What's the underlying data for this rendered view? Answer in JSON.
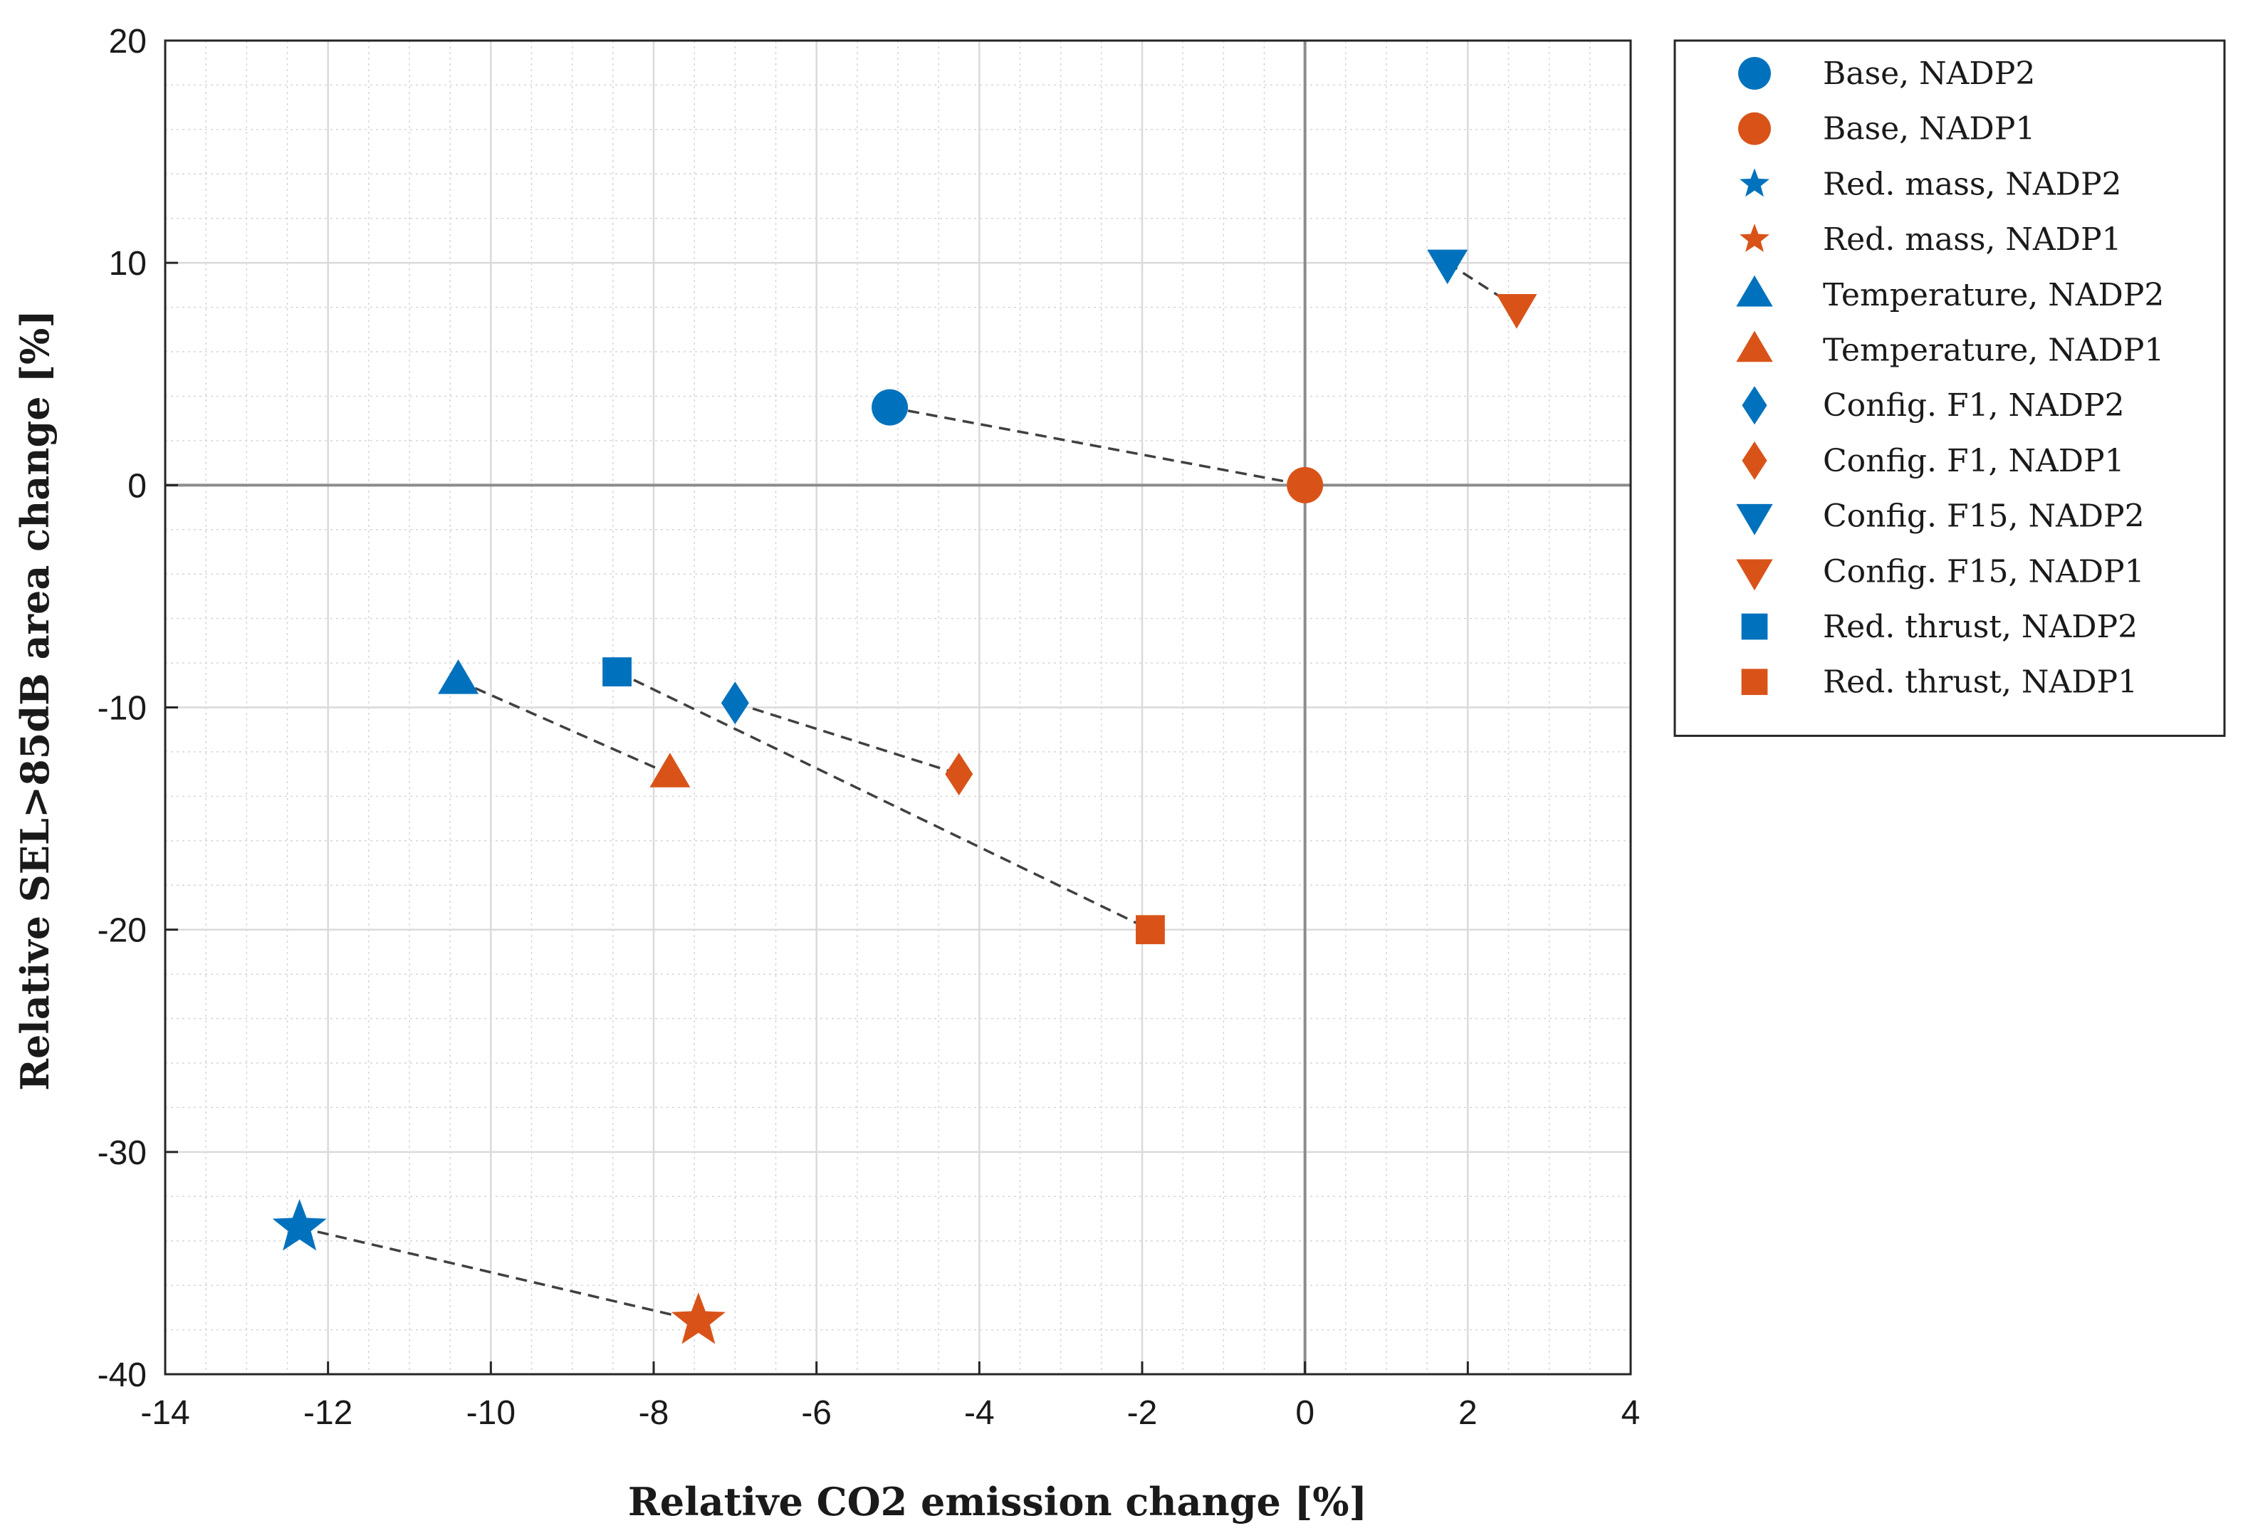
{
  "chart_data": {
    "type": "scatter",
    "title": "",
    "xlabel": "Relative CO2 emission change [%]",
    "ylabel": "Relative SEL>85dB area change [%]",
    "xlim": [
      -14,
      4
    ],
    "ylim": [
      -40,
      20
    ],
    "xticks": [
      -14,
      -12,
      -10,
      -8,
      -6,
      -4,
      -2,
      0,
      2,
      4
    ],
    "yticks": [
      -40,
      -30,
      -20,
      -10,
      0,
      10,
      20
    ],
    "grid": true,
    "minor_grid": true,
    "legend_position": "outside-right",
    "colors": {
      "NADP2": "#0072BD",
      "NADP1": "#D95319"
    },
    "series": [
      {
        "name": "Base, NADP2",
        "marker": "circle",
        "color": "#0072BD",
        "x": -5.1,
        "y": 3.5
      },
      {
        "name": "Base, NADP1",
        "marker": "circle",
        "color": "#D95319",
        "x": 0.0,
        "y": 0.0
      },
      {
        "name": "Red. mass, NADP2",
        "marker": "star",
        "color": "#0072BD",
        "x": -12.35,
        "y": -33.4
      },
      {
        "name": "Red. mass, NADP1",
        "marker": "star",
        "color": "#D95319",
        "x": -7.45,
        "y": -37.6
      },
      {
        "name": "Temperature, NADP2",
        "marker": "triangle-up",
        "color": "#0072BD",
        "x": -10.4,
        "y": -8.8
      },
      {
        "name": "Temperature, NADP1",
        "marker": "triangle-up",
        "color": "#D95319",
        "x": -7.8,
        "y": -13.0
      },
      {
        "name": "Config. F1, NADP2",
        "marker": "diamond",
        "color": "#0072BD",
        "x": -7.0,
        "y": -9.8
      },
      {
        "name": "Config. F1, NADP1",
        "marker": "diamond",
        "color": "#D95319",
        "x": -4.25,
        "y": -13.0
      },
      {
        "name": "Config. F15, NADP2",
        "marker": "triangle-down",
        "color": "#0072BD",
        "x": 1.75,
        "y": 10.0
      },
      {
        "name": "Config. F15, NADP1",
        "marker": "triangle-down",
        "color": "#D95319",
        "x": 2.6,
        "y": 8.0
      },
      {
        "name": "Red. thrust, NADP2",
        "marker": "square",
        "color": "#0072BD",
        "x": -8.45,
        "y": -8.4
      },
      {
        "name": "Red. thrust, NADP1",
        "marker": "square",
        "color": "#D95319",
        "x": -1.9,
        "y": -20.0
      }
    ],
    "connections": [
      {
        "from": "Base, NADP2",
        "to": "Base, NADP1"
      },
      {
        "from": "Red. mass, NADP2",
        "to": "Red. mass, NADP1"
      },
      {
        "from": "Temperature, NADP2",
        "to": "Temperature, NADP1"
      },
      {
        "from": "Config. F1, NADP2",
        "to": "Config. F1, NADP1"
      },
      {
        "from": "Config. F15, NADP2",
        "to": "Config. F15, NADP1"
      },
      {
        "from": "Red. thrust, NADP2",
        "to": "Red. thrust, NADP1"
      }
    ]
  }
}
